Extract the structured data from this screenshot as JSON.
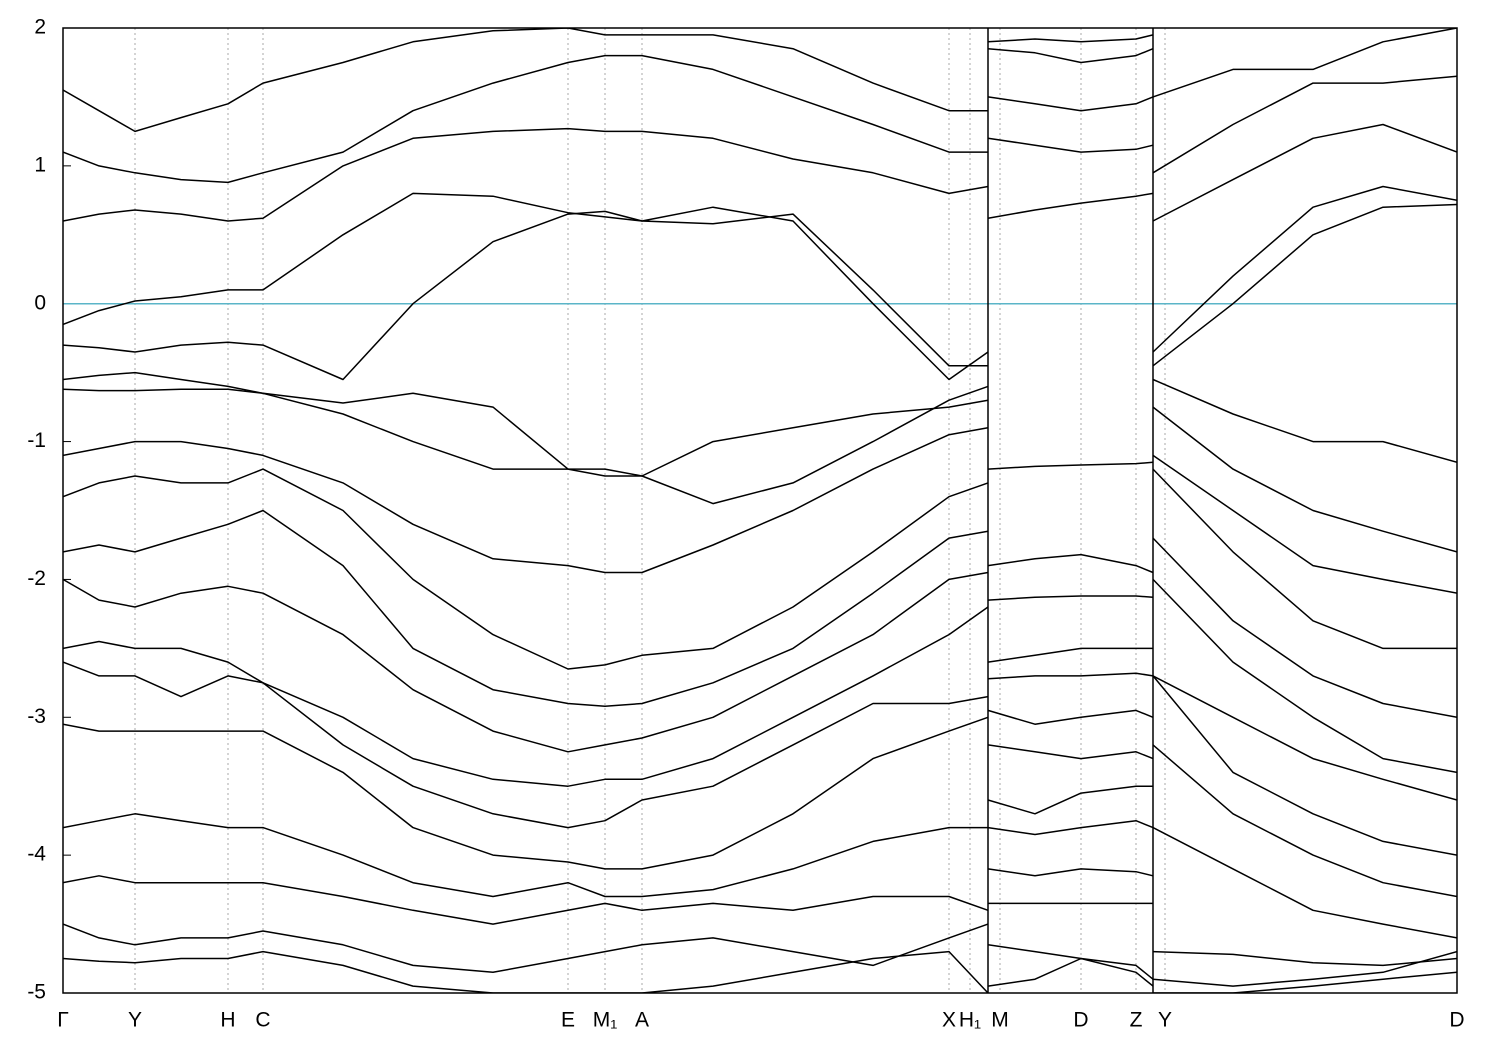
{
  "chart_data": {
    "type": "line",
    "color": "#000000",
    "grid": true,
    "xlim": [
      0,
      1394
    ],
    "ylim": [
      -5,
      2
    ],
    "yticks": [
      2,
      1,
      0,
      -1,
      -2,
      -3,
      -4,
      -5
    ],
    "xticks": [
      {
        "value": 0,
        "label": "Γ"
      },
      {
        "value": 72,
        "label": "Y"
      },
      {
        "value": 165,
        "label": "H"
      },
      {
        "value": 200,
        "label": "C"
      },
      {
        "value": 505,
        "label": "E"
      },
      {
        "value": 542,
        "label": "M₁"
      },
      {
        "value": 579,
        "label": "A"
      },
      {
        "value": 886,
        "label": "X"
      },
      {
        "value": 907,
        "label": "H₁"
      },
      {
        "value": 937,
        "label": "M"
      },
      {
        "value": 1018,
        "label": "D"
      },
      {
        "value": 1073,
        "label": "Z"
      },
      {
        "value": 1102,
        "label": "Y"
      },
      {
        "value": 1394,
        "label": "D"
      }
    ],
    "panel_breaks": [
      925,
      1090
    ],
    "hline": {
      "value": 0,
      "color": "#5bb5c8"
    },
    "x": [
      0,
      36,
      72,
      118,
      165,
      200,
      280,
      350,
      430,
      505,
      542,
      579,
      650,
      730,
      810,
      886,
      925,
      925,
      925,
      972,
      1018,
      1073,
      1090,
      1090,
      1090,
      1170,
      1250,
      1320,
      1394
    ],
    "series": [
      {
        "values": [
          -0.15,
          -0.05,
          0.02,
          0.05,
          0.1,
          0.1,
          0.5,
          0.8,
          0.78,
          0.66,
          0.63,
          0.6,
          0.58,
          0.65,
          0.1,
          -0.45,
          -0.45,
          null,
          0.62,
          0.68,
          0.73,
          0.78,
          0.8,
          null,
          -0.45,
          0.0,
          0.5,
          0.7,
          0.72
        ]
      },
      {
        "values": [
          -0.3,
          -0.32,
          -0.35,
          -0.3,
          -0.28,
          -0.3,
          -0.55,
          0.0,
          0.45,
          0.65,
          0.67,
          0.6,
          0.7,
          0.6,
          0.0,
          -0.55,
          -0.35,
          null,
          1.2,
          1.15,
          1.1,
          1.12,
          1.15,
          null,
          -0.35,
          0.2,
          0.7,
          0.85,
          0.75
        ]
      },
      {
        "values": [
          0.6,
          0.65,
          0.68,
          0.65,
          0.6,
          0.62,
          1.0,
          1.2,
          1.25,
          1.27,
          1.25,
          1.25,
          1.2,
          1.05,
          0.95,
          0.8,
          0.85,
          null,
          1.5,
          1.45,
          1.4,
          1.45,
          1.5,
          null,
          0.6,
          0.9,
          1.2,
          1.3,
          1.1
        ]
      },
      {
        "values": [
          1.1,
          1.0,
          0.95,
          0.9,
          0.88,
          0.95,
          1.1,
          1.4,
          1.6,
          1.75,
          1.8,
          1.8,
          1.7,
          1.5,
          1.3,
          1.1,
          1.1,
          null,
          1.85,
          1.82,
          1.75,
          1.8,
          1.85,
          null,
          0.95,
          1.3,
          1.6,
          1.6,
          1.65
        ]
      },
      {
        "values": [
          1.55,
          1.4,
          1.25,
          1.35,
          1.45,
          1.6,
          1.75,
          1.9,
          1.98,
          2.0,
          1.95,
          1.95,
          1.95,
          1.85,
          1.6,
          1.4,
          1.4,
          null,
          1.9,
          1.92,
          1.9,
          1.92,
          1.95,
          null,
          1.5,
          1.7,
          1.7,
          1.9,
          2.0
        ]
      },
      {
        "values": [
          -0.55,
          -0.52,
          -0.5,
          -0.55,
          -0.6,
          -0.65,
          -0.72,
          -0.65,
          -0.75,
          -1.2,
          -1.2,
          -1.25,
          -1.0,
          -0.9,
          -0.8,
          -0.75,
          -0.7,
          null,
          -1.2,
          -1.18,
          -1.17,
          -1.16,
          -1.15,
          null,
          -0.55,
          -0.8,
          -1.0,
          -1.0,
          -1.15
        ]
      },
      {
        "values": [
          -0.62,
          -0.63,
          -0.63,
          -0.62,
          -0.62,
          -0.65,
          -0.8,
          -1.0,
          -1.2,
          -1.2,
          -1.25,
          -1.25,
          -1.45,
          -1.3,
          -1.0,
          -0.7,
          -0.6,
          null,
          -1.9,
          -1.85,
          -1.82,
          -1.9,
          -1.95,
          null,
          -0.75,
          -1.2,
          -1.5,
          -1.65,
          -1.8
        ]
      },
      {
        "values": [
          -1.1,
          -1.05,
          -1.0,
          -1.0,
          -1.05,
          -1.1,
          -1.3,
          -1.6,
          -1.85,
          -1.9,
          -1.95,
          -1.95,
          -1.75,
          -1.5,
          -1.2,
          -0.95,
          -0.9,
          null,
          -2.15,
          -2.13,
          -2.12,
          -2.12,
          -2.13,
          null,
          -1.1,
          -1.5,
          -1.9,
          -2.0,
          -2.1
        ]
      },
      {
        "values": [
          -1.4,
          -1.3,
          -1.25,
          -1.3,
          -1.3,
          -1.2,
          -1.5,
          -2.0,
          -2.4,
          -2.65,
          -2.62,
          -2.55,
          -2.5,
          -2.2,
          -1.8,
          -1.4,
          -1.3,
          null,
          -2.6,
          -2.55,
          -2.5,
          -2.5,
          -2.5,
          null,
          -1.2,
          -1.8,
          -2.3,
          -2.5,
          -2.5
        ]
      },
      {
        "values": [
          -1.8,
          -1.75,
          -1.8,
          -1.7,
          -1.6,
          -1.5,
          -1.9,
          -2.5,
          -2.8,
          -2.9,
          -2.92,
          -2.9,
          -2.75,
          -2.5,
          -2.1,
          -1.7,
          -1.65,
          null,
          -2.72,
          -2.7,
          -2.7,
          -2.68,
          -2.7,
          null,
          -1.7,
          -2.3,
          -2.7,
          -2.9,
          -3.0
        ]
      },
      {
        "values": [
          -2.0,
          -2.15,
          -2.2,
          -2.1,
          -2.05,
          -2.1,
          -2.4,
          -2.8,
          -3.1,
          -3.25,
          -3.2,
          -3.15,
          -3.0,
          -2.7,
          -2.4,
          -2.0,
          -1.95,
          null,
          -2.95,
          -3.05,
          -3.0,
          -2.95,
          -3.0,
          null,
          -2.0,
          -2.6,
          -3.0,
          -3.3,
          -3.4
        ]
      },
      {
        "values": [
          -2.5,
          -2.45,
          -2.5,
          -2.5,
          -2.6,
          -2.75,
          -3.0,
          -3.3,
          -3.45,
          -3.5,
          -3.45,
          -3.45,
          -3.3,
          -3.0,
          -2.7,
          -2.4,
          -2.2,
          null,
          -3.2,
          -3.25,
          -3.3,
          -3.25,
          -3.3,
          null,
          -2.7,
          -3.0,
          -3.3,
          -3.45,
          -3.6
        ]
      },
      {
        "values": [
          -2.6,
          -2.7,
          -2.7,
          -2.85,
          -2.7,
          -2.75,
          -3.2,
          -3.5,
          -3.7,
          -3.8,
          -3.75,
          -3.6,
          -3.5,
          -3.2,
          -2.9,
          -2.9,
          -2.85,
          null,
          -3.6,
          -3.7,
          -3.55,
          -3.5,
          -3.5,
          null,
          -2.7,
          -3.4,
          -3.7,
          -3.9,
          -4.0
        ]
      },
      {
        "values": [
          -3.05,
          -3.1,
          -3.1,
          -3.1,
          -3.1,
          -3.1,
          -3.4,
          -3.8,
          -4.0,
          -4.05,
          -4.1,
          -4.1,
          -4.0,
          -3.7,
          -3.3,
          -3.1,
          -3.0,
          null,
          -3.8,
          -3.85,
          -3.8,
          -3.75,
          -3.8,
          null,
          -3.2,
          -3.7,
          -4.0,
          -4.2,
          -4.3
        ]
      },
      {
        "values": [
          -3.8,
          -3.75,
          -3.7,
          -3.75,
          -3.8,
          -3.8,
          -4.0,
          -4.2,
          -4.3,
          -4.2,
          -4.3,
          -4.3,
          -4.25,
          -4.1,
          -3.9,
          -3.8,
          -3.8,
          null,
          -4.1,
          -4.15,
          -4.1,
          -4.12,
          -4.15,
          null,
          -3.8,
          -4.1,
          -4.4,
          -4.5,
          -4.6
        ]
      },
      {
        "values": [
          -4.2,
          -4.15,
          -4.2,
          -4.2,
          -4.2,
          -4.2,
          -4.3,
          -4.4,
          -4.5,
          -4.4,
          -4.35,
          -4.4,
          -4.35,
          -4.4,
          -4.3,
          -4.3,
          -4.4,
          null,
          -4.35,
          -4.35,
          -4.35,
          -4.35,
          -4.35,
          null,
          -4.7,
          -4.72,
          -4.78,
          -4.8,
          -4.75
        ]
      },
      {
        "values": [
          -4.5,
          -4.6,
          -4.65,
          -4.6,
          -4.6,
          -4.55,
          -4.65,
          -4.8,
          -4.85,
          -4.75,
          -4.7,
          -4.65,
          -4.6,
          -4.7,
          -4.8,
          -4.6,
          -4.5,
          null,
          -4.65,
          -4.7,
          -4.75,
          -4.8,
          -4.9,
          null,
          -4.9,
          -4.95,
          -4.9,
          -4.85,
          -4.7
        ]
      },
      {
        "values": [
          -4.75,
          -4.77,
          -4.78,
          -4.75,
          -4.75,
          -4.7,
          -4.8,
          -4.95,
          -5.0,
          -5.0,
          -5.0,
          -5.0,
          -4.95,
          -4.85,
          -4.75,
          -4.7,
          -5.0,
          null,
          -4.95,
          -4.9,
          -4.75,
          -4.85,
          -4.95,
          null,
          -5.0,
          -5.0,
          -4.95,
          -4.9,
          -4.85
        ]
      }
    ]
  }
}
